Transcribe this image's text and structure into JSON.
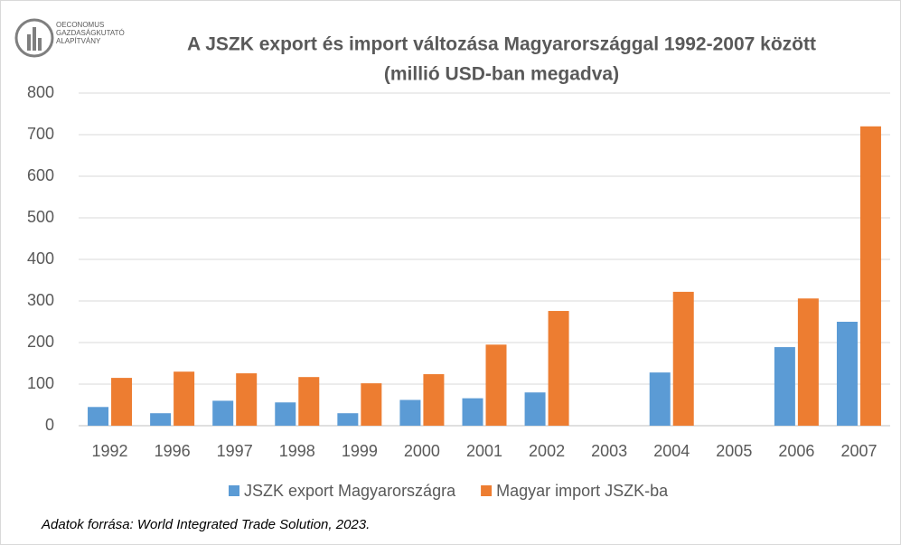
{
  "logo": {
    "lines": [
      "OECONOMUS",
      "GAZDASÁGKUTATÓ",
      "ALAPÍTVÁNY"
    ]
  },
  "chart_data": {
    "type": "bar",
    "title": "A JSZK export és import változása Magyarországgal 1992-2007 között",
    "subtitle": "(millió USD-ban megadva)",
    "categories": [
      "1992",
      "1996",
      "1997",
      "1998",
      "1999",
      "2000",
      "2001",
      "2002",
      "2003",
      "2004",
      "2005",
      "2006",
      "2007"
    ],
    "series": [
      {
        "name": "JSZK export Magyarországra",
        "color": "#5b9bd5",
        "values": [
          45,
          30,
          60,
          56,
          30,
          62,
          66,
          80,
          null,
          128,
          null,
          189,
          250
        ]
      },
      {
        "name": "Magyar import JSZK-ba",
        "color": "#ed7d31",
        "values": [
          115,
          130,
          126,
          117,
          102,
          124,
          195,
          276,
          null,
          322,
          null,
          306,
          720
        ]
      }
    ],
    "ylim": [
      0,
      800
    ],
    "yticks": [
      0,
      100,
      200,
      300,
      400,
      500,
      600,
      700,
      800
    ],
    "grid": true,
    "legend": "bottom",
    "source": "Adatok forrása: World Integrated Trade Solution, 2023."
  }
}
